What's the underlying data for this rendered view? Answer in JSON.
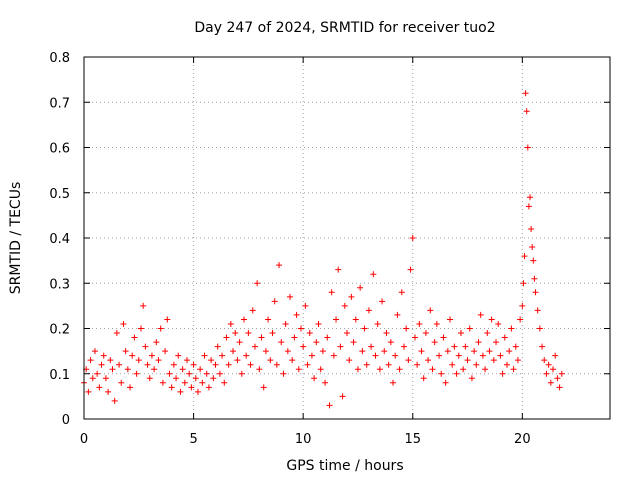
{
  "chart_data": {
    "type": "scatter",
    "title": "Day 247 of 2024, SRMTID for receiver tuo2",
    "xlabel": "GPS time / hours",
    "ylabel": "SRMTID / TECUs",
    "xlim": [
      0,
      24
    ],
    "ylim": [
      0,
      0.8
    ],
    "xticks": [
      0,
      5,
      10,
      15,
      20
    ],
    "xtick_labels": [
      "0",
      "5",
      "10",
      "15",
      "20"
    ],
    "yticks": [
      0,
      0.1,
      0.2,
      0.3,
      0.4,
      0.5,
      0.6,
      0.7,
      0.8
    ],
    "ytick_labels": [
      "0",
      "0.1",
      "0.2",
      "0.3",
      "0.4",
      "0.5",
      "0.6",
      "0.7",
      "0.8"
    ],
    "grid": true,
    "marker": "+",
    "series_color": "#ff0000",
    "series": [
      {
        "name": "SRMTID",
        "points": [
          [
            0.0,
            0.08
          ],
          [
            0.1,
            0.11
          ],
          [
            0.2,
            0.06
          ],
          [
            0.3,
            0.13
          ],
          [
            0.4,
            0.09
          ],
          [
            0.5,
            0.15
          ],
          [
            0.6,
            0.1
          ],
          [
            0.7,
            0.07
          ],
          [
            0.8,
            0.12
          ],
          [
            0.9,
            0.14
          ],
          [
            1.0,
            0.09
          ],
          [
            1.1,
            0.06
          ],
          [
            1.2,
            0.13
          ],
          [
            1.3,
            0.11
          ],
          [
            1.4,
            0.04
          ],
          [
            1.5,
            0.19
          ],
          [
            1.6,
            0.12
          ],
          [
            1.7,
            0.08
          ],
          [
            1.8,
            0.21
          ],
          [
            1.9,
            0.15
          ],
          [
            2.0,
            0.11
          ],
          [
            2.1,
            0.07
          ],
          [
            2.2,
            0.14
          ],
          [
            2.3,
            0.18
          ],
          [
            2.4,
            0.1
          ],
          [
            2.5,
            0.13
          ],
          [
            2.6,
            0.2
          ],
          [
            2.7,
            0.25
          ],
          [
            2.8,
            0.16
          ],
          [
            2.9,
            0.12
          ],
          [
            3.0,
            0.09
          ],
          [
            3.1,
            0.14
          ],
          [
            3.2,
            0.11
          ],
          [
            3.3,
            0.17
          ],
          [
            3.4,
            0.13
          ],
          [
            3.5,
            0.2
          ],
          [
            3.6,
            0.08
          ],
          [
            3.7,
            0.15
          ],
          [
            3.8,
            0.22
          ],
          [
            3.9,
            0.1
          ],
          [
            4.0,
            0.07
          ],
          [
            4.1,
            0.12
          ],
          [
            4.2,
            0.09
          ],
          [
            4.3,
            0.14
          ],
          [
            4.4,
            0.06
          ],
          [
            4.5,
            0.11
          ],
          [
            4.6,
            0.08
          ],
          [
            4.7,
            0.13
          ],
          [
            4.8,
            0.1
          ],
          [
            4.9,
            0.07
          ],
          [
            5.0,
            0.12
          ],
          [
            5.1,
            0.09
          ],
          [
            5.2,
            0.06
          ],
          [
            5.3,
            0.11
          ],
          [
            5.4,
            0.08
          ],
          [
            5.5,
            0.14
          ],
          [
            5.6,
            0.1
          ],
          [
            5.7,
            0.07
          ],
          [
            5.8,
            0.13
          ],
          [
            5.9,
            0.09
          ],
          [
            6.0,
            0.12
          ],
          [
            6.1,
            0.16
          ],
          [
            6.2,
            0.1
          ],
          [
            6.3,
            0.14
          ],
          [
            6.4,
            0.08
          ],
          [
            6.5,
            0.18
          ],
          [
            6.6,
            0.12
          ],
          [
            6.7,
            0.21
          ],
          [
            6.8,
            0.15
          ],
          [
            6.9,
            0.19
          ],
          [
            7.0,
            0.13
          ],
          [
            7.1,
            0.17
          ],
          [
            7.2,
            0.1
          ],
          [
            7.3,
            0.22
          ],
          [
            7.4,
            0.14
          ],
          [
            7.5,
            0.19
          ],
          [
            7.6,
            0.12
          ],
          [
            7.7,
            0.24
          ],
          [
            7.8,
            0.16
          ],
          [
            7.9,
            0.3
          ],
          [
            8.0,
            0.11
          ],
          [
            8.1,
            0.18
          ],
          [
            8.2,
            0.07
          ],
          [
            8.3,
            0.15
          ],
          [
            8.4,
            0.22
          ],
          [
            8.5,
            0.13
          ],
          [
            8.6,
            0.19
          ],
          [
            8.7,
            0.26
          ],
          [
            8.8,
            0.12
          ],
          [
            8.9,
            0.34
          ],
          [
            9.0,
            0.17
          ],
          [
            9.1,
            0.1
          ],
          [
            9.2,
            0.21
          ],
          [
            9.3,
            0.15
          ],
          [
            9.4,
            0.27
          ],
          [
            9.5,
            0.13
          ],
          [
            9.6,
            0.18
          ],
          [
            9.7,
            0.23
          ],
          [
            9.8,
            0.11
          ],
          [
            9.9,
            0.2
          ],
          [
            10.0,
            0.16
          ],
          [
            10.1,
            0.25
          ],
          [
            10.2,
            0.12
          ],
          [
            10.3,
            0.19
          ],
          [
            10.4,
            0.14
          ],
          [
            10.5,
            0.09
          ],
          [
            10.6,
            0.17
          ],
          [
            10.7,
            0.21
          ],
          [
            10.8,
            0.11
          ],
          [
            10.9,
            0.15
          ],
          [
            11.0,
            0.08
          ],
          [
            11.1,
            0.18
          ],
          [
            11.2,
            0.03
          ],
          [
            11.3,
            0.28
          ],
          [
            11.4,
            0.14
          ],
          [
            11.5,
            0.22
          ],
          [
            11.6,
            0.33
          ],
          [
            11.7,
            0.16
          ],
          [
            11.8,
            0.05
          ],
          [
            11.9,
            0.25
          ],
          [
            12.0,
            0.19
          ],
          [
            12.1,
            0.13
          ],
          [
            12.2,
            0.27
          ],
          [
            12.3,
            0.17
          ],
          [
            12.4,
            0.22
          ],
          [
            12.5,
            0.11
          ],
          [
            12.6,
            0.29
          ],
          [
            12.7,
            0.15
          ],
          [
            12.8,
            0.2
          ],
          [
            12.9,
            0.12
          ],
          [
            13.0,
            0.24
          ],
          [
            13.1,
            0.16
          ],
          [
            13.2,
            0.32
          ],
          [
            13.3,
            0.14
          ],
          [
            13.4,
            0.21
          ],
          [
            13.5,
            0.11
          ],
          [
            13.6,
            0.26
          ],
          [
            13.7,
            0.15
          ],
          [
            13.8,
            0.19
          ],
          [
            13.9,
            0.12
          ],
          [
            14.0,
            0.17
          ],
          [
            14.1,
            0.08
          ],
          [
            14.2,
            0.14
          ],
          [
            14.3,
            0.23
          ],
          [
            14.4,
            0.11
          ],
          [
            14.5,
            0.28
          ],
          [
            14.6,
            0.16
          ],
          [
            14.7,
            0.2
          ],
          [
            14.8,
            0.13
          ],
          [
            14.9,
            0.33
          ],
          [
            15.0,
            0.4
          ],
          [
            15.1,
            0.18
          ],
          [
            15.2,
            0.12
          ],
          [
            15.3,
            0.21
          ],
          [
            15.4,
            0.15
          ],
          [
            15.5,
            0.09
          ],
          [
            15.6,
            0.19
          ],
          [
            15.7,
            0.13
          ],
          [
            15.8,
            0.24
          ],
          [
            15.9,
            0.11
          ],
          [
            16.0,
            0.17
          ],
          [
            16.1,
            0.21
          ],
          [
            16.2,
            0.14
          ],
          [
            16.3,
            0.1
          ],
          [
            16.4,
            0.18
          ],
          [
            16.5,
            0.08
          ],
          [
            16.6,
            0.15
          ],
          [
            16.7,
            0.22
          ],
          [
            16.8,
            0.12
          ],
          [
            16.9,
            0.16
          ],
          [
            17.0,
            0.1
          ],
          [
            17.1,
            0.14
          ],
          [
            17.2,
            0.19
          ],
          [
            17.3,
            0.11
          ],
          [
            17.4,
            0.16
          ],
          [
            17.5,
            0.13
          ],
          [
            17.6,
            0.2
          ],
          [
            17.7,
            0.09
          ],
          [
            17.8,
            0.15
          ],
          [
            17.9,
            0.12
          ],
          [
            18.0,
            0.17
          ],
          [
            18.1,
            0.23
          ],
          [
            18.2,
            0.14
          ],
          [
            18.3,
            0.11
          ],
          [
            18.4,
            0.19
          ],
          [
            18.5,
            0.15
          ],
          [
            18.6,
            0.22
          ],
          [
            18.7,
            0.13
          ],
          [
            18.8,
            0.17
          ],
          [
            18.9,
            0.21
          ],
          [
            19.0,
            0.14
          ],
          [
            19.1,
            0.1
          ],
          [
            19.2,
            0.18
          ],
          [
            19.3,
            0.12
          ],
          [
            19.4,
            0.15
          ],
          [
            19.5,
            0.2
          ],
          [
            19.6,
            0.11
          ],
          [
            19.7,
            0.16
          ],
          [
            19.8,
            0.13
          ],
          [
            19.9,
            0.22
          ],
          [
            20.0,
            0.25
          ],
          [
            20.05,
            0.3
          ],
          [
            20.1,
            0.36
          ],
          [
            20.15,
            0.72
          ],
          [
            20.2,
            0.68
          ],
          [
            20.25,
            0.6
          ],
          [
            20.3,
            0.47
          ],
          [
            20.35,
            0.49
          ],
          [
            20.4,
            0.42
          ],
          [
            20.45,
            0.38
          ],
          [
            20.5,
            0.35
          ],
          [
            20.55,
            0.31
          ],
          [
            20.6,
            0.28
          ],
          [
            20.7,
            0.24
          ],
          [
            20.8,
            0.2
          ],
          [
            20.9,
            0.16
          ],
          [
            21.0,
            0.13
          ],
          [
            21.1,
            0.1
          ],
          [
            21.2,
            0.12
          ],
          [
            21.3,
            0.08
          ],
          [
            21.4,
            0.11
          ],
          [
            21.5,
            0.14
          ],
          [
            21.6,
            0.09
          ],
          [
            21.7,
            0.07
          ],
          [
            21.8,
            0.1
          ]
        ]
      }
    ]
  }
}
